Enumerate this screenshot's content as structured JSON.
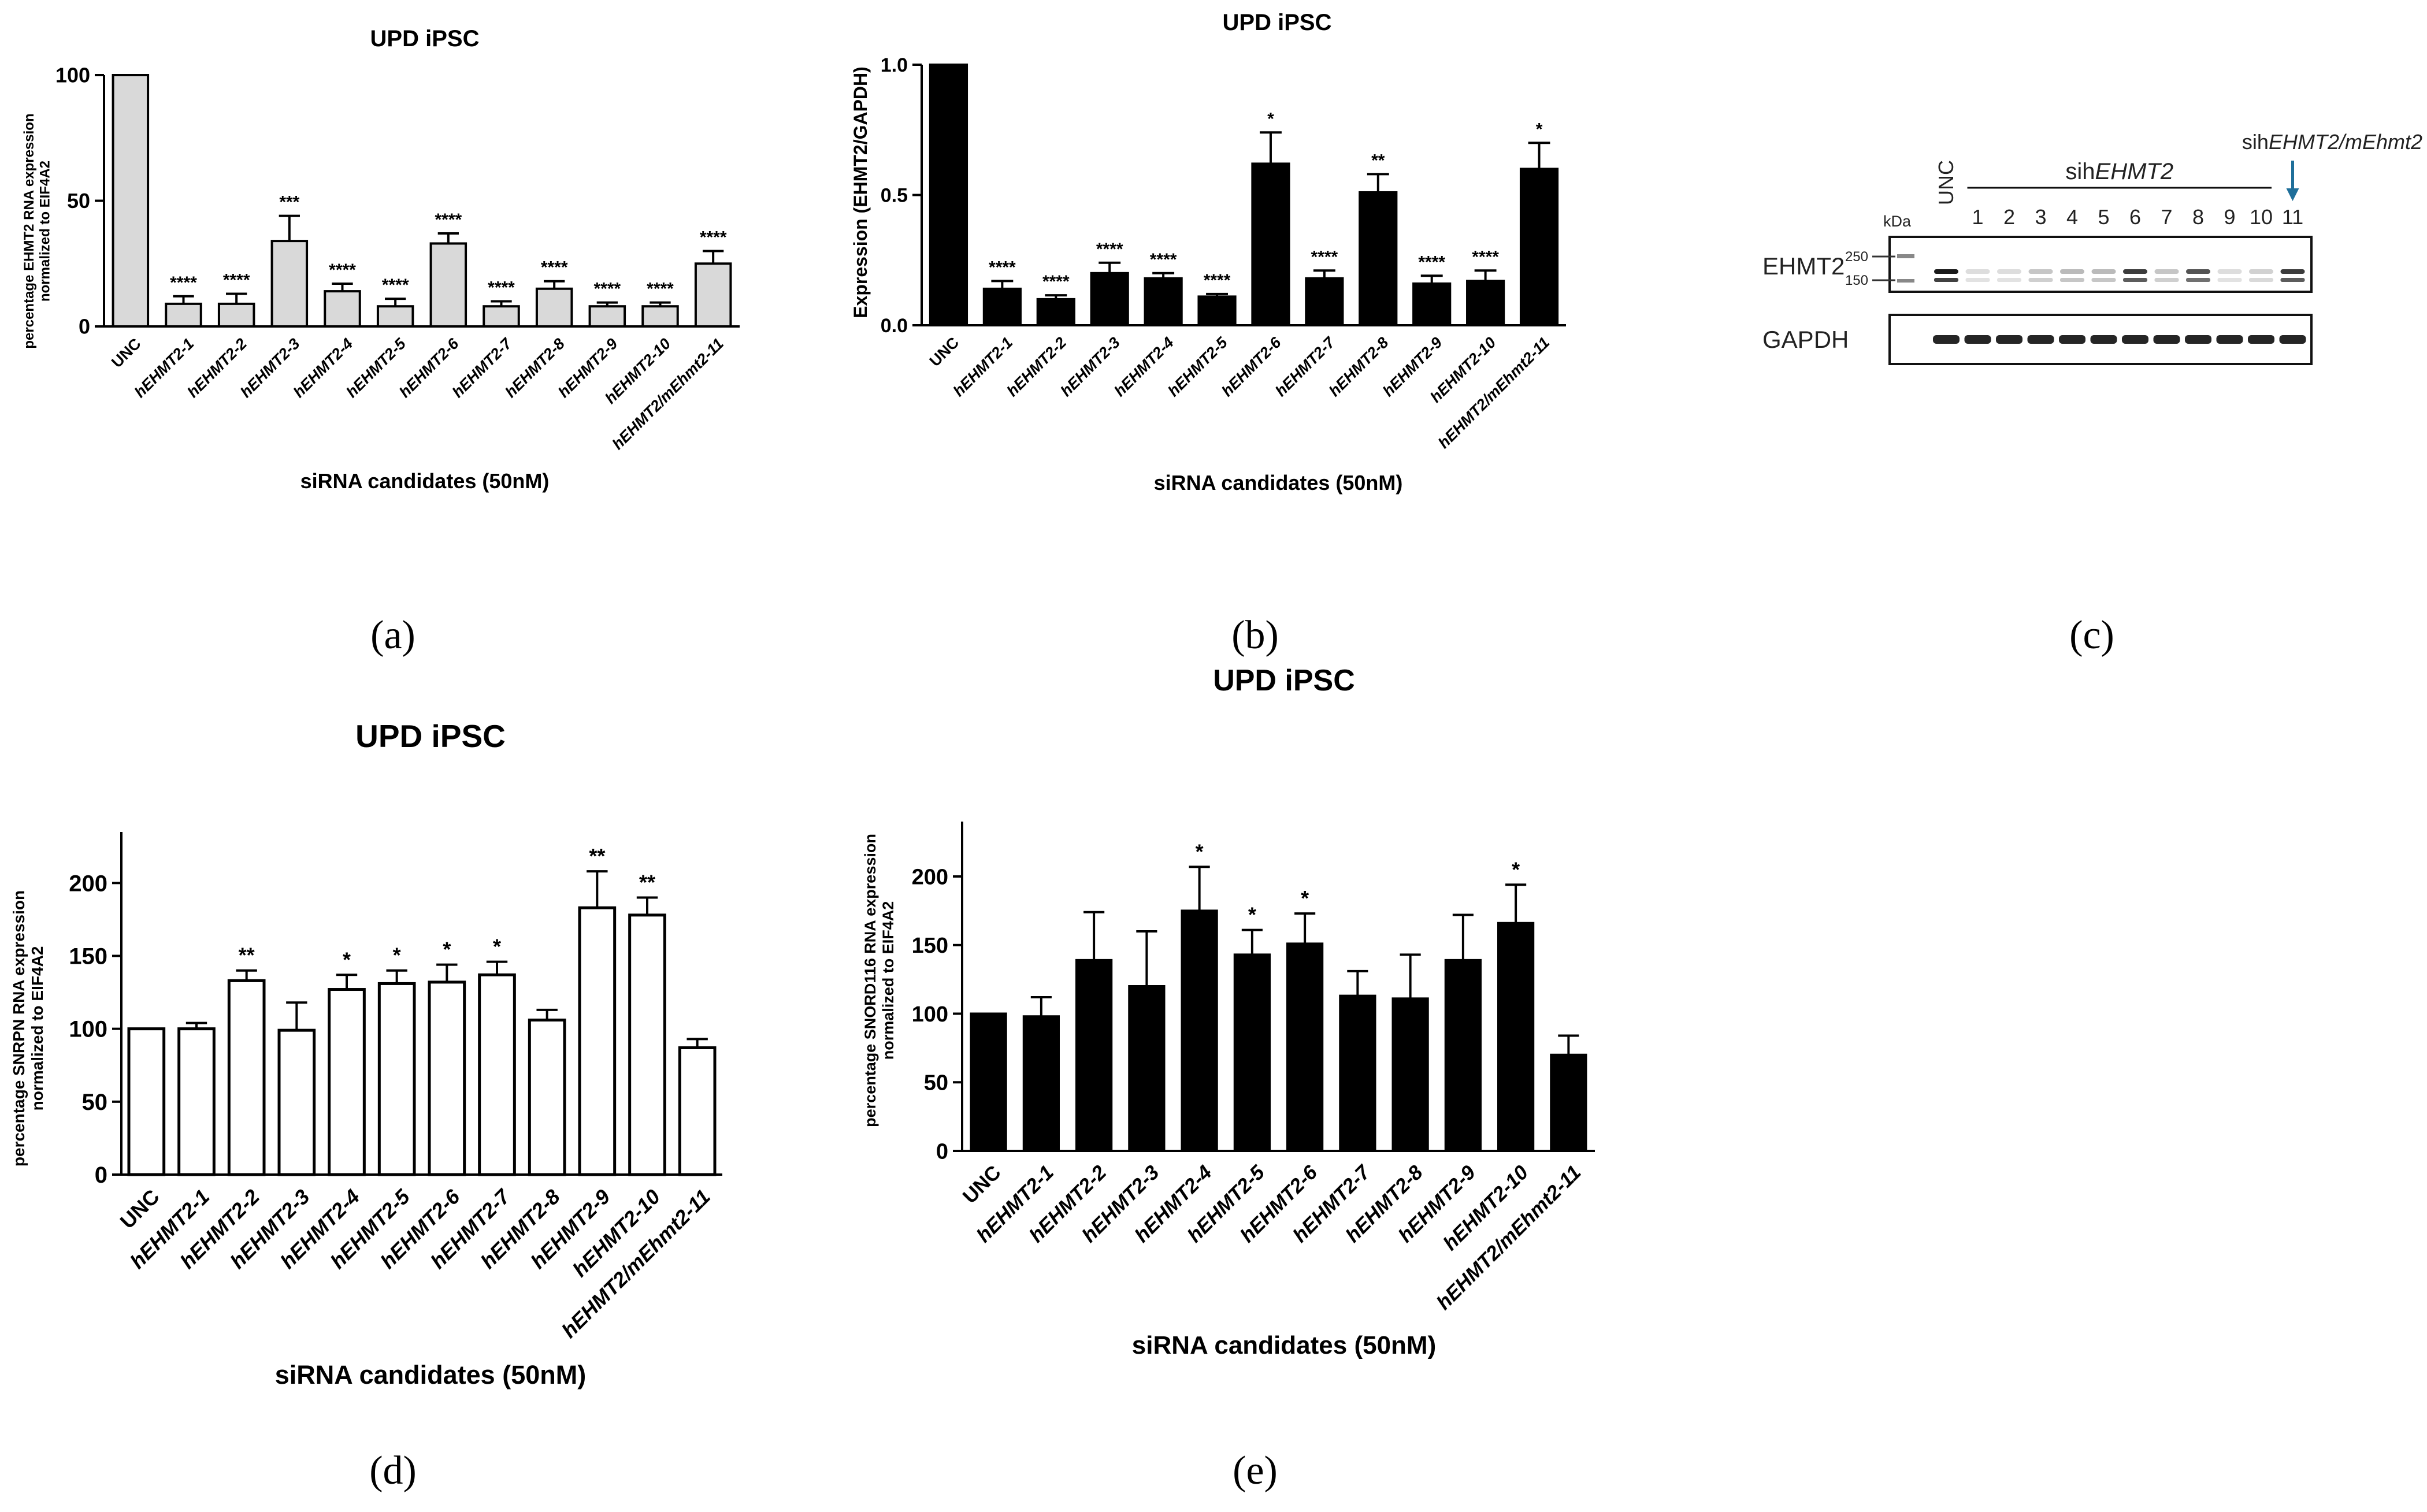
{
  "panel_letters": [
    "(a)",
    "(b)",
    "(c)",
    "(d)",
    "(e)"
  ],
  "chart_data": [
    {
      "id": "a",
      "type": "bar",
      "title": "UPD iPSC",
      "xlabel": "siRNA candidates (50nM)",
      "ylabel": "percentage EHMT2 RNA expression normalized to EIF4A2",
      "ylabel_lines": [
        "percentage EHMT2 RNA expression",
        "normalized to EIF4A2"
      ],
      "ylim": [
        0,
        100
      ],
      "yticks": [
        0,
        50,
        100
      ],
      "bar_color": "#d9d9d9",
      "categories": [
        "UNC",
        "hEHMT2-1",
        "hEHMT2-2",
        "hEHMT2-3",
        "hEHMT2-4",
        "hEHMT2-5",
        "hEHMT2-6",
        "hEHMT2-7",
        "hEHMT2-8",
        "hEHMT2-9",
        "hEHMT2-10",
        "hEHMT2/mEhmt2-11"
      ],
      "values": [
        100,
        9,
        9,
        34,
        14,
        8,
        33,
        8,
        15,
        8,
        8,
        25
      ],
      "errors": [
        0,
        3,
        4,
        10,
        3,
        3,
        4,
        2,
        3,
        1.5,
        1.5,
        5
      ],
      "significance": [
        "",
        "****",
        "****",
        "***",
        "****",
        "****",
        "****",
        "****",
        "****",
        "****",
        "****",
        "****"
      ]
    },
    {
      "id": "b",
      "type": "bar",
      "title": "UPD iPSC",
      "xlabel": "siRNA candidates (50nM)",
      "ylabel": "Expression (EHMT2/GAPDH)",
      "ylim": [
        0,
        1.0
      ],
      "yticks": [
        0.0,
        0.5,
        1.0
      ],
      "ytick_labels": [
        "0.0",
        "0.5",
        "1.0"
      ],
      "bar_color": "#000000",
      "categories": [
        "UNC",
        "hEHMT2-1",
        "hEHMT2-2",
        "hEHMT2-3",
        "hEHMT2-4",
        "hEHMT2-5",
        "hEHMT2-6",
        "hEHMT2-7",
        "hEHMT2-8",
        "hEHMT2-9",
        "hEHMT2-10",
        "hEHMT2/mEhmt2-11"
      ],
      "values": [
        1.0,
        0.14,
        0.1,
        0.2,
        0.18,
        0.11,
        0.62,
        0.18,
        0.51,
        0.16,
        0.17,
        0.6
      ],
      "errors": [
        0,
        0.03,
        0.015,
        0.04,
        0.02,
        0.01,
        0.12,
        0.03,
        0.07,
        0.03,
        0.04,
        0.1
      ],
      "significance": [
        "",
        "****",
        "****",
        "****",
        "****",
        "****",
        "*",
        "****",
        "**",
        "****",
        "****",
        "*"
      ]
    },
    {
      "id": "d",
      "type": "bar",
      "title": "UPD iPSC",
      "xlabel": "siRNA candidates (50nM)",
      "ylabel": "percentage SNRPN RNA expression normalized to EIF4A2",
      "ylabel_lines": [
        "percentage SNRPN RNA expression",
        "normalized to EIF4A2"
      ],
      "ylim": [
        0,
        235
      ],
      "yticks": [
        0,
        50,
        100,
        150,
        200
      ],
      "bar_color": "#ffffff",
      "categories": [
        "UNC",
        "hEHMT2-1",
        "hEHMT2-2",
        "hEHMT2-3",
        "hEHMT2-4",
        "hEHMT2-5",
        "hEHMT2-6",
        "hEHMT2-7",
        "hEHMT2-8",
        "hEHMT2-9",
        "hEHMT2-10",
        "hEHMT2/mEhmt2-11"
      ],
      "values": [
        100,
        100,
        133,
        99,
        127,
        131,
        132,
        137,
        106,
        183,
        178,
        87
      ],
      "errors": [
        0,
        4,
        7,
        19,
        10,
        9,
        12,
        9,
        7,
        25,
        12,
        6
      ],
      "significance": [
        "",
        "",
        "**",
        "",
        "*",
        "*",
        "*",
        "*",
        "",
        "**",
        "**",
        ""
      ]
    },
    {
      "id": "e",
      "type": "bar",
      "title": "UPD iPSC",
      "xlabel": "siRNA candidates (50nM)",
      "ylabel": "percentage SNORD116 RNA expression normalized to EIF4A2",
      "ylabel_lines": [
        "percentage SNORD116 RNA expression",
        "normalized to EIF4A2"
      ],
      "ylim": [
        0,
        240
      ],
      "yticks": [
        0,
        50,
        100,
        150,
        200
      ],
      "bar_color": "#000000",
      "categories": [
        "UNC",
        "hEHMT2-1",
        "hEHMT2-2",
        "hEHMT2-3",
        "hEHMT2-4",
        "hEHMT2-5",
        "hEHMT2-6",
        "hEHMT2-7",
        "hEHMT2-8",
        "hEHMT2-9",
        "hEHMT2-10",
        "hEHMT2/mEhmt2-11"
      ],
      "values": [
        100,
        98,
        139,
        120,
        175,
        143,
        151,
        113,
        111,
        139,
        166,
        70
      ],
      "errors": [
        0,
        14,
        35,
        40,
        32,
        18,
        22,
        18,
        32,
        33,
        28,
        14
      ],
      "significance": [
        "",
        "",
        "",
        "",
        "*",
        "*",
        "*",
        "",
        "",
        "",
        "*",
        ""
      ]
    }
  ],
  "western_blot": {
    "kda_label": "kDa",
    "markers": [
      "250",
      "150"
    ],
    "lane_labels": [
      "UNC",
      "1",
      "2",
      "3",
      "4",
      "5",
      "6",
      "7",
      "8",
      "9",
      "10",
      "11"
    ],
    "group_label_prefix": "sih",
    "group_label_gene": "EHMT2",
    "arrow_label_prefix": "sih",
    "arrow_label_gene": "EHMT2/mEhmt2",
    "row_labels": [
      "EHMT2",
      "GAPDH"
    ],
    "ehmt2_band_intensity": [
      1.0,
      0.15,
      0.15,
      0.25,
      0.3,
      0.3,
      0.85,
      0.25,
      0.75,
      0.15,
      0.2,
      0.85
    ],
    "gapdh_band_intensity": [
      0.95,
      0.95,
      0.95,
      0.95,
      0.95,
      0.95,
      0.95,
      0.95,
      0.95,
      0.95,
      0.95,
      0.95
    ],
    "arrow_color": "#1f6f9a"
  }
}
